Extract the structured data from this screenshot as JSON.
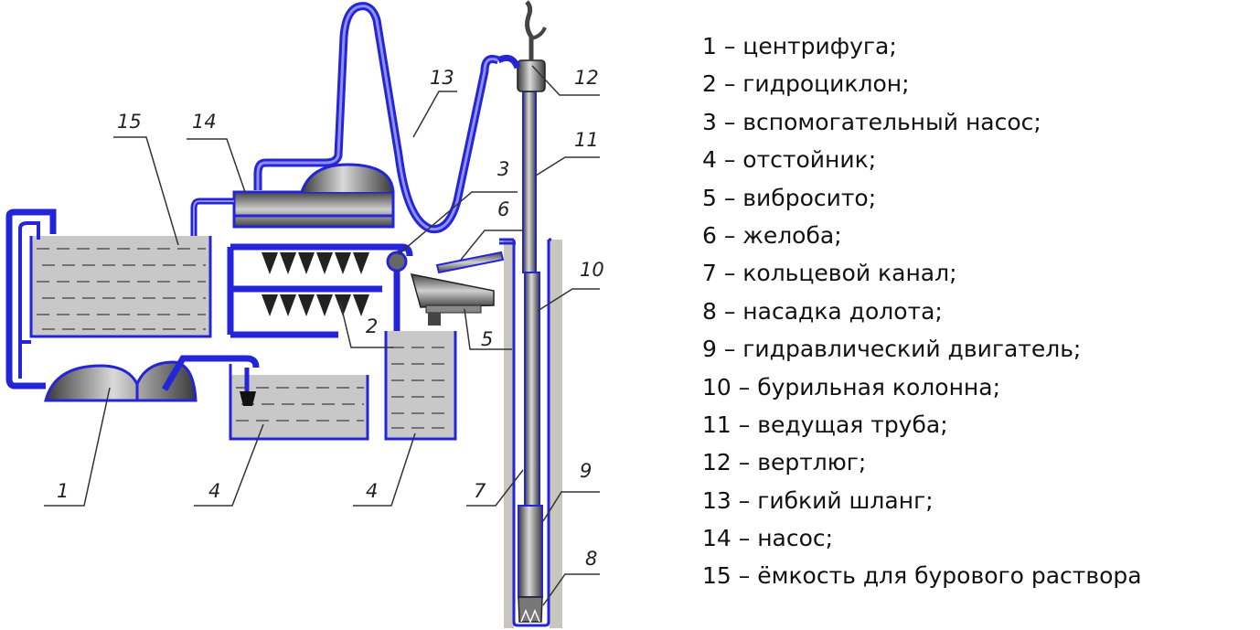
{
  "diagram": {
    "labels": {
      "n1": "1",
      "n2": "2",
      "n3": "3",
      "n4a": "4",
      "n4b": "4",
      "n5": "5",
      "n6": "6",
      "n7": "7",
      "n8": "8",
      "n9": "9",
      "n10": "10",
      "n11": "11",
      "n12": "12",
      "n13": "13",
      "n14": "14",
      "n15": "15"
    },
    "colors": {
      "pipe": "#2424d8",
      "fluid": "#c8c8c8",
      "ground": "#c9c6bd",
      "metal": "#555555"
    }
  },
  "legend": [
    "1 – центрифуга;",
    "2 – гидроциклон;",
    "3 – вспомогательный насос;",
    "4 – отстойник;",
    "5 – вибросито;",
    "6 – желоба;",
    "7 – кольцевой канал;",
    "8 – насадка долота;",
    "9 – гидравлический двигатель;",
    "10 – бурильная колонна;",
    "11 – ведущая труба;",
    "12 – вертлюг;",
    "13 – гибкий шланг;",
    "14 – насос;",
    "15 – ёмкость для бурового раствора"
  ]
}
